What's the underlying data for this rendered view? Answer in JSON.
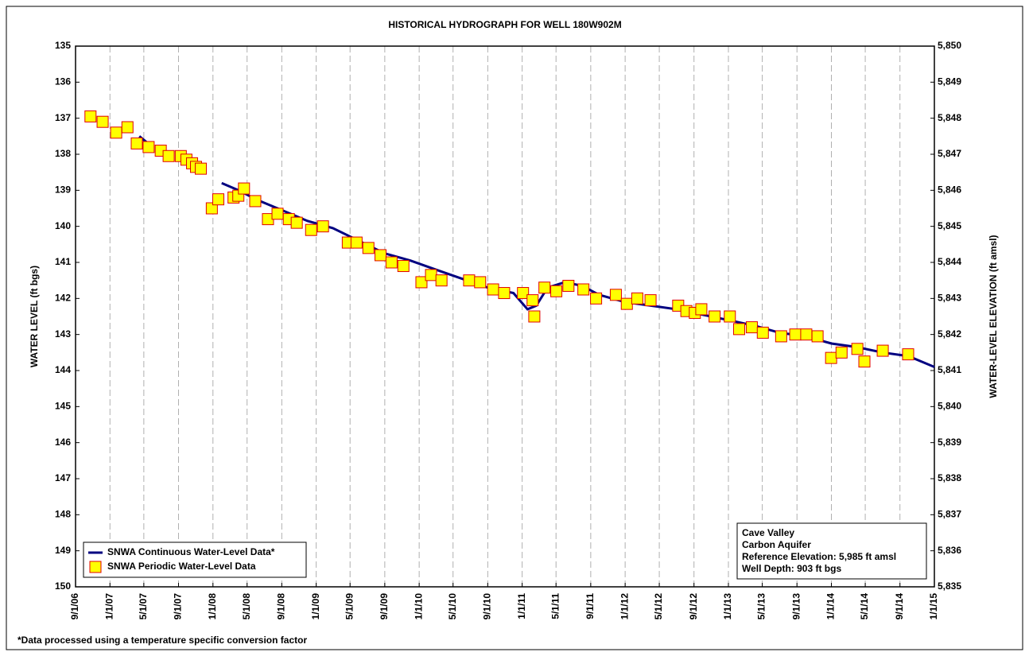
{
  "chart_data": {
    "type": "line",
    "title": "HISTORICAL HYDROGRAPH FOR WELL 180W902M",
    "ylabel": "WATER LEVEL (ft bgs)",
    "y2label": "WATER-LEVEL ELEVATION (ft amsl)",
    "footnote": "*Data processed using a temperature specific conversion factor",
    "legend": "lower left",
    "grid": "x",
    "annotation": [
      "Cave Valley",
      "Carbon Aquifer",
      "Reference Elevation: 5,985 ft amsl",
      "Well Depth: 903 ft bgs"
    ],
    "xlim": [
      "2006-09-01",
      "2015-01-01"
    ],
    "xticks": [
      {
        "value": "2006-09-01",
        "label": "9/1/06"
      },
      {
        "value": "2007-01-01",
        "label": "1/1/07"
      },
      {
        "value": "2007-05-01",
        "label": "5/1/07"
      },
      {
        "value": "2007-09-01",
        "label": "9/1/07"
      },
      {
        "value": "2008-01-01",
        "label": "1/1/08"
      },
      {
        "value": "2008-05-01",
        "label": "5/1/08"
      },
      {
        "value": "2008-09-01",
        "label": "9/1/08"
      },
      {
        "value": "2009-01-01",
        "label": "1/1/09"
      },
      {
        "value": "2009-05-01",
        "label": "5/1/09"
      },
      {
        "value": "2009-09-01",
        "label": "9/1/09"
      },
      {
        "value": "2010-01-01",
        "label": "1/1/10"
      },
      {
        "value": "2010-05-01",
        "label": "5/1/10"
      },
      {
        "value": "2010-09-01",
        "label": "9/1/10"
      },
      {
        "value": "2011-01-01",
        "label": "1/1/11"
      },
      {
        "value": "2011-05-01",
        "label": "5/1/11"
      },
      {
        "value": "2011-09-01",
        "label": "9/1/11"
      },
      {
        "value": "2012-01-01",
        "label": "1/1/12"
      },
      {
        "value": "2012-05-01",
        "label": "5/1/12"
      },
      {
        "value": "2012-09-01",
        "label": "9/1/12"
      },
      {
        "value": "2013-01-01",
        "label": "1/1/13"
      },
      {
        "value": "2013-05-01",
        "label": "5/1/13"
      },
      {
        "value": "2013-09-01",
        "label": "9/1/13"
      },
      {
        "value": "2014-01-01",
        "label": "1/1/14"
      },
      {
        "value": "2014-05-01",
        "label": "5/1/14"
      },
      {
        "value": "2014-09-01",
        "label": "9/1/14"
      },
      {
        "value": "2015-01-01",
        "label": "1/1/15"
      }
    ],
    "ylim": [
      150,
      135
    ],
    "yticks": [
      135,
      136,
      137,
      138,
      139,
      140,
      141,
      142,
      143,
      144,
      145,
      146,
      147,
      148,
      149,
      150
    ],
    "y2lim": [
      5835,
      5850
    ],
    "y2ticks": [
      {
        "value": 5835,
        "label": "5,835"
      },
      {
        "value": 5836,
        "label": "5,836"
      },
      {
        "value": 5837,
        "label": "5,837"
      },
      {
        "value": 5838,
        "label": "5,838"
      },
      {
        "value": 5839,
        "label": "5,839"
      },
      {
        "value": 5840,
        "label": "5,840"
      },
      {
        "value": 5841,
        "label": "5,841"
      },
      {
        "value": 5842,
        "label": "5,842"
      },
      {
        "value": 5843,
        "label": "5,843"
      },
      {
        "value": 5844,
        "label": "5,844"
      },
      {
        "value": 5845,
        "label": "5,845"
      },
      {
        "value": 5846,
        "label": "5,846"
      },
      {
        "value": 5847,
        "label": "5,847"
      },
      {
        "value": 5848,
        "label": "5,848"
      },
      {
        "value": 5849,
        "label": "5,849"
      },
      {
        "value": 5850,
        "label": "5,850"
      }
    ],
    "series": [
      {
        "name": "SNWA Continuous Water-Level Data*",
        "type": "line",
        "color": "#000080",
        "x": [
          "2007-04-15",
          "2007-06-01",
          "2007-09-01",
          "2008-02-01",
          "2008-04-01",
          "2008-06-01",
          "2008-09-01",
          "2008-12-01",
          "2009-03-01",
          "2009-06-01",
          "2009-09-01",
          "2009-12-01",
          "2010-03-01",
          "2010-06-01",
          "2010-09-01",
          "2010-12-01",
          "2011-01-20",
          "2011-02-20",
          "2011-04-01",
          "2011-06-01",
          "2011-08-01",
          "2011-10-01",
          "2012-01-01",
          "2012-04-01",
          "2012-07-01",
          "2012-10-01",
          "2013-01-01",
          "2013-04-01",
          "2013-07-01",
          "2013-10-01",
          "2014-01-01",
          "2014-04-01",
          "2014-07-01",
          "2014-10-01",
          "2015-01-01"
        ],
        "values": [
          137.5,
          137.8,
          null,
          138.8,
          139.0,
          139.25,
          139.55,
          139.85,
          140.05,
          140.4,
          140.75,
          140.95,
          141.2,
          141.45,
          141.7,
          141.85,
          142.3,
          142.2,
          141.7,
          141.55,
          141.65,
          141.9,
          142.1,
          142.2,
          142.3,
          142.45,
          142.6,
          142.75,
          142.95,
          143.05,
          143.25,
          143.35,
          143.5,
          143.6,
          143.9
        ]
      },
      {
        "name": "SNWA Periodic Water-Level Data",
        "type": "scatter",
        "color": "#ffff00",
        "edgecolor": "#e00000",
        "x": [
          "2006-10-24",
          "2006-12-06",
          "2007-01-23",
          "2007-03-04",
          "2007-04-06",
          "2007-05-18",
          "2007-06-30",
          "2007-07-28",
          "2007-09-09",
          "2007-09-29",
          "2007-10-19",
          "2007-11-02",
          "2007-11-19",
          "2007-12-28",
          "2008-01-20",
          "2008-03-14",
          "2008-03-31",
          "2008-04-20",
          "2008-05-30",
          "2008-07-14",
          "2008-08-17",
          "2008-09-26",
          "2008-10-24",
          "2008-12-14",
          "2009-01-25",
          "2009-04-23",
          "2009-05-24",
          "2009-07-05",
          "2009-08-17",
          "2009-09-25",
          "2009-11-06",
          "2010-01-09",
          "2010-02-12",
          "2010-03-21",
          "2010-06-27",
          "2010-08-05",
          "2010-09-20",
          "2010-10-29",
          "2011-01-04",
          "2011-02-07",
          "2011-02-13",
          "2011-03-21",
          "2011-05-02",
          "2011-06-14",
          "2011-08-06",
          "2011-09-20",
          "2011-11-29",
          "2012-01-07",
          "2012-02-13",
          "2012-03-31",
          "2012-07-07",
          "2012-08-05",
          "2012-09-04",
          "2012-09-27",
          "2012-11-13",
          "2013-01-06",
          "2013-02-08",
          "2013-03-25",
          "2013-05-03",
          "2013-07-07",
          "2013-08-26",
          "2013-10-04",
          "2013-11-13",
          "2013-12-31",
          "2014-02-06",
          "2014-04-03",
          "2014-04-28",
          "2014-07-02",
          "2014-09-30"
        ],
        "values": [
          136.95,
          137.1,
          137.4,
          137.25,
          137.7,
          137.8,
          137.9,
          138.05,
          138.05,
          138.15,
          138.25,
          138.35,
          138.4,
          139.5,
          139.25,
          139.2,
          139.15,
          138.95,
          139.3,
          139.8,
          139.65,
          139.8,
          139.9,
          140.1,
          140.0,
          140.45,
          140.45,
          140.6,
          140.8,
          141.0,
          141.1,
          141.55,
          141.35,
          141.5,
          141.5,
          141.55,
          141.75,
          141.85,
          141.85,
          142.05,
          142.5,
          141.7,
          141.8,
          141.65,
          141.75,
          142.0,
          141.9,
          142.15,
          142.0,
          142.05,
          142.2,
          142.35,
          142.4,
          142.3,
          142.5,
          142.5,
          142.85,
          142.8,
          142.95,
          143.05,
          143.0,
          143.0,
          143.05,
          143.65,
          143.5,
          143.4,
          143.75,
          143.45,
          143.55
        ]
      }
    ]
  }
}
